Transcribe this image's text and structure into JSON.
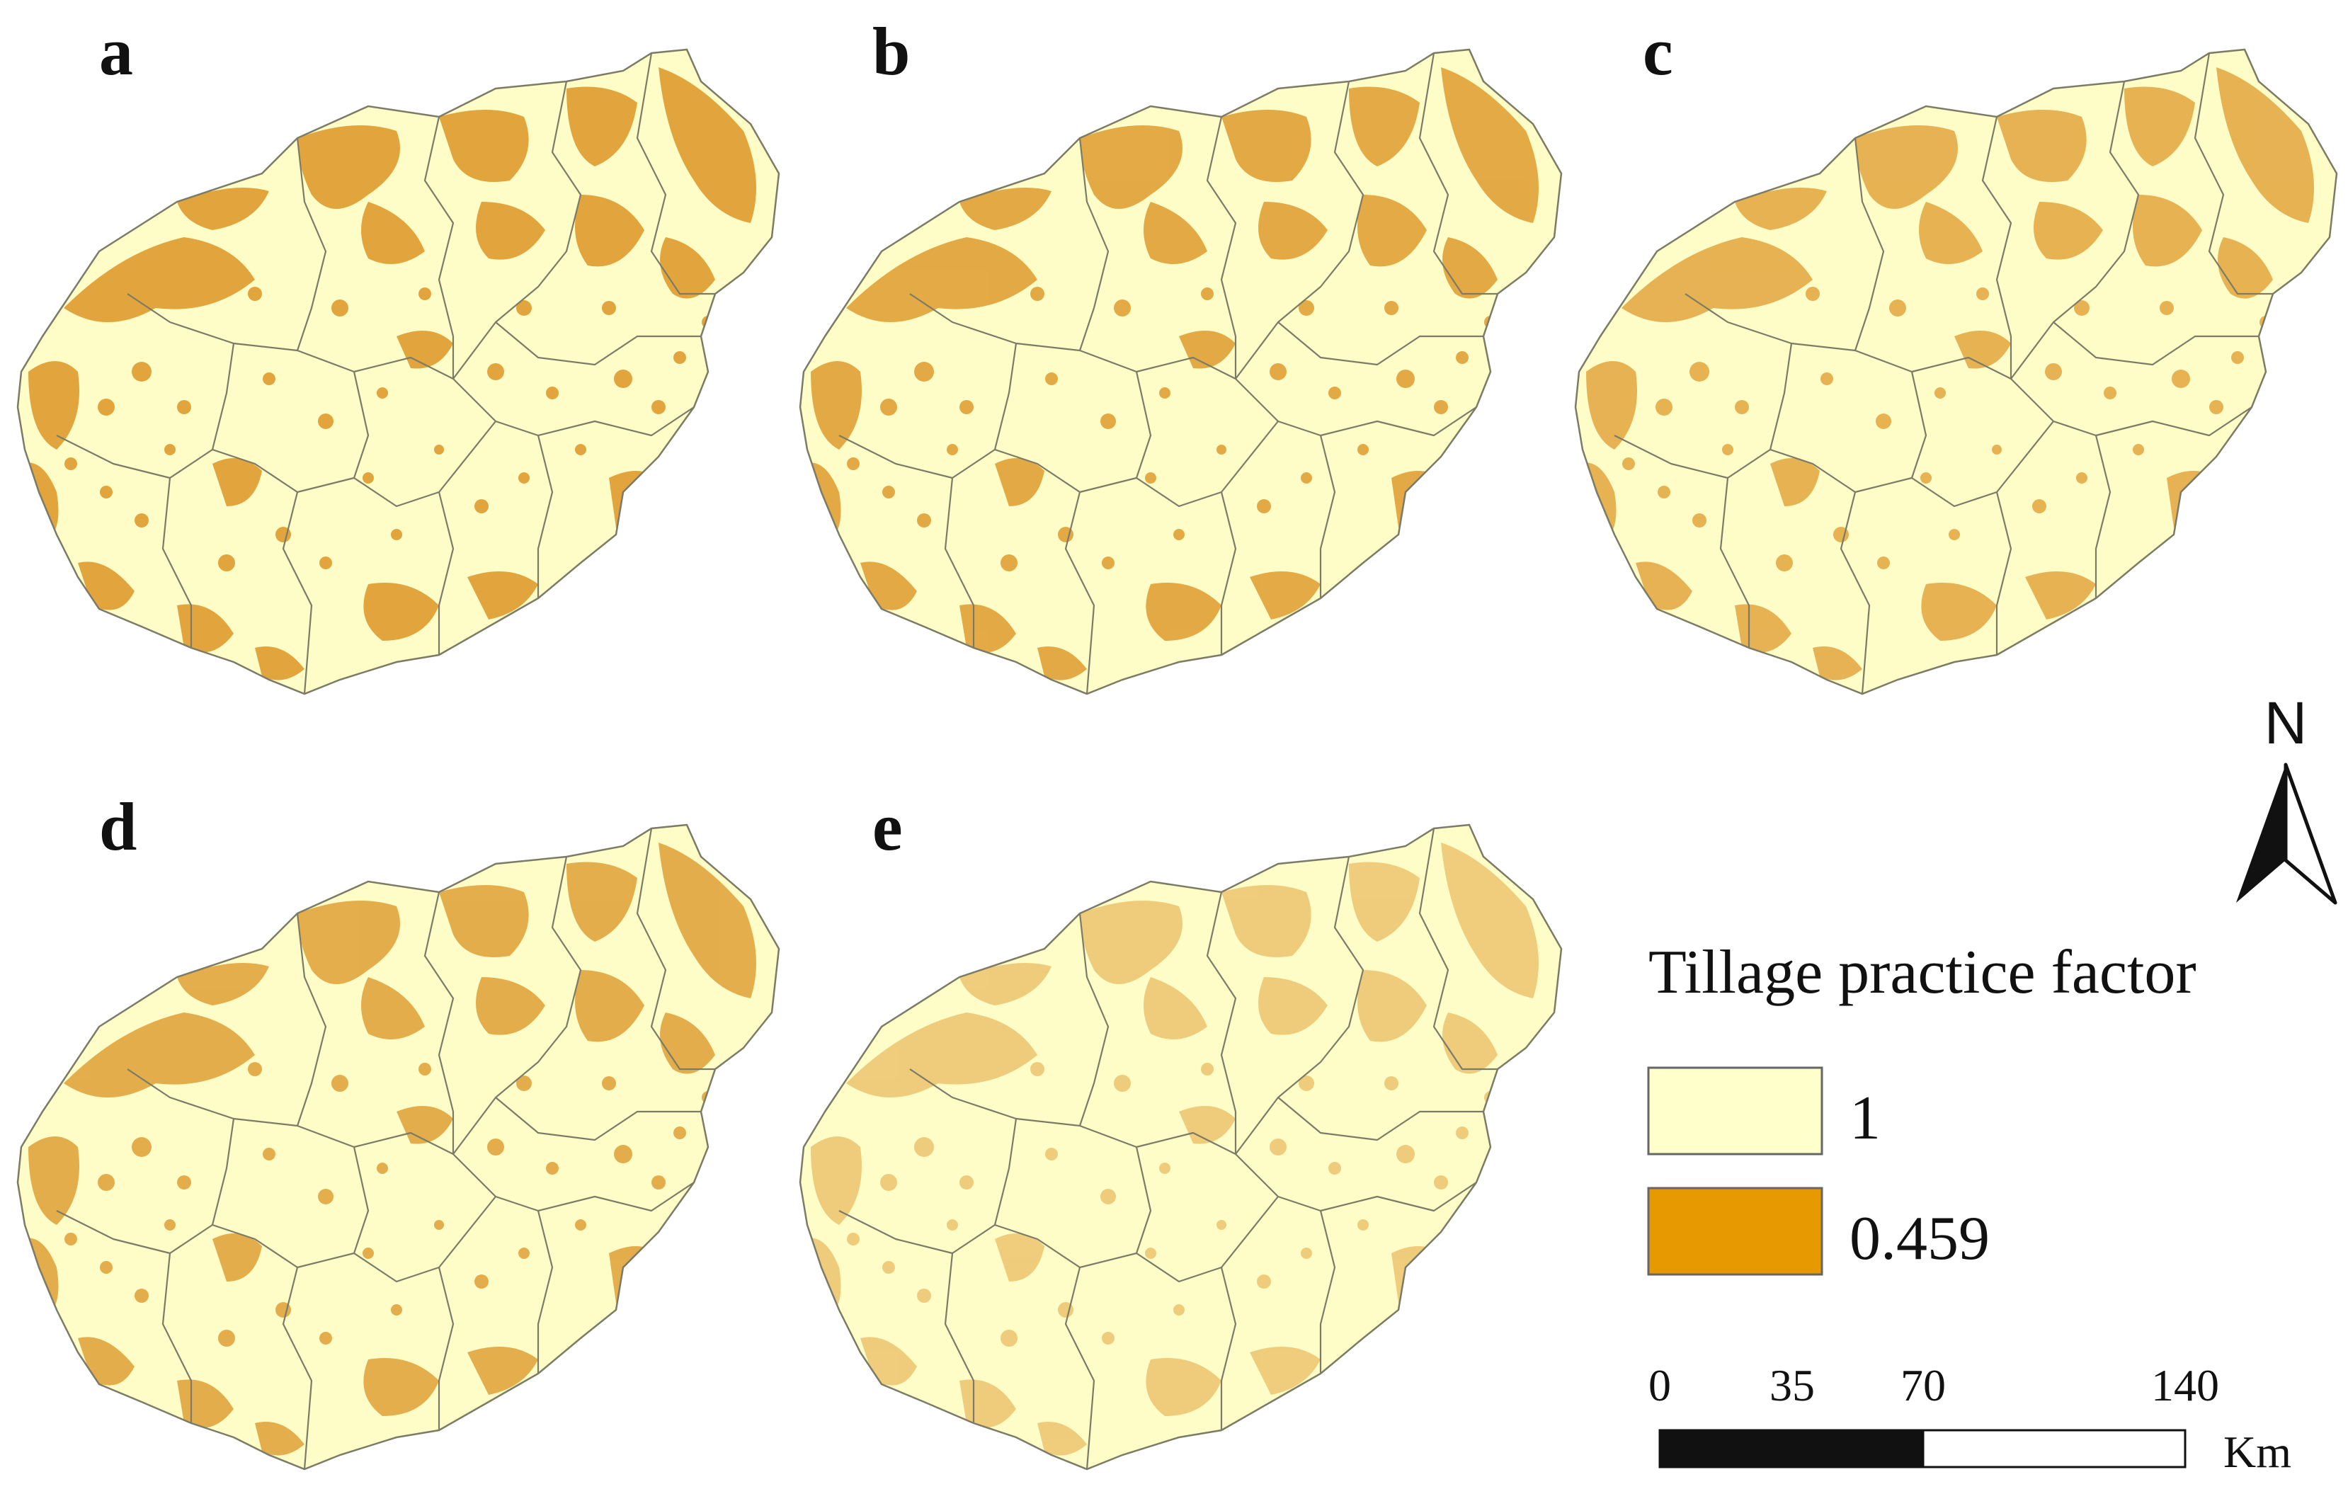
{
  "panels": [
    {
      "label": "a",
      "intensity": 1.0
    },
    {
      "label": "b",
      "intensity": 0.95
    },
    {
      "label": "c",
      "intensity": 0.85
    },
    {
      "label": "d",
      "intensity": 0.9
    },
    {
      "label": "e",
      "intensity": 0.55
    }
  ],
  "legend": {
    "title": "Tillage practice factor",
    "items": [
      {
        "value": "1",
        "color": "#ffffcc"
      },
      {
        "value": "0.459",
        "color": "#e69900"
      }
    ]
  },
  "scale_bar": {
    "ticks": [
      "0",
      "35",
      "70",
      "140"
    ],
    "unit": "Km"
  },
  "north_arrow": {
    "letter": "N"
  },
  "colors": {
    "land": "#fefdc8",
    "cropland": "#e2a53e",
    "boundary": "#7c7b66"
  }
}
